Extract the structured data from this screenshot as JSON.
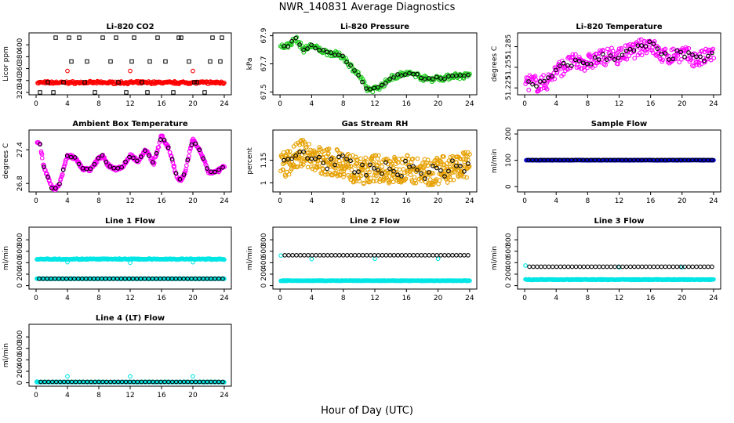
{
  "page": {
    "title": "NWR_140831  Average Diagnostics",
    "xlabel": "Hour of Day (UTC)"
  },
  "colors": {
    "hourly": "#000000",
    "red": "#ff0000",
    "green": "#22cc22",
    "magenta": "#ff00ff",
    "orange": "#e6a000",
    "blue": "#0000cc",
    "cyan": "#00e5e5"
  },
  "chart_data": [
    {
      "id": "li820-co2",
      "type": "scatter",
      "title": "Li-820 CO2",
      "ylabel": "Licor ppm",
      "xlim": [
        0,
        24
      ],
      "ylim": [
        316,
        420
      ],
      "xticks": [
        0,
        4,
        8,
        12,
        16,
        20,
        24
      ],
      "yticks": [
        320,
        340,
        360,
        380,
        400
      ],
      "series": [
        {
          "kind": "band",
          "color": "red",
          "x": [
            0.2,
            24
          ],
          "y": [
            335,
            338
          ],
          "jitter": 2
        },
        {
          "kind": "points",
          "color": "red",
          "x": [
            4.0,
            12.0,
            20.0
          ],
          "y": [
            356,
            356,
            356
          ]
        },
        {
          "kind": "points",
          "color": "hourly",
          "marker": "square",
          "x": [
            0.5,
            1.5,
            2.5,
            3.5,
            4.5,
            5.5,
            6.5,
            7.5,
            8.5,
            9.5,
            10.5,
            11.5,
            12.5,
            13.5,
            14.5,
            15.5,
            16.5,
            17.5,
            18.5,
            19.5,
            20.5,
            21.5,
            22.5,
            23.5
          ],
          "y": [
            320,
            337,
            412,
            337,
            372,
            412,
            372,
            320,
            412,
            372,
            337,
            320,
            412,
            337,
            372,
            412,
            372,
            320,
            412,
            372,
            337,
            320,
            412,
            372
          ]
        },
        {
          "kind": "points",
          "color": "hourly",
          "marker": "square",
          "x": [
            2.2,
            4.2,
            6.2,
            10.2,
            12.2,
            14.2,
            18.2,
            20.2,
            22.2,
            23.7
          ],
          "y": [
            320,
            412,
            337,
            412,
            372,
            320,
            412,
            337,
            372,
            412
          ]
        }
      ]
    },
    {
      "id": "li820-pressure",
      "type": "scatter",
      "title": "Li-820 Pressure",
      "ylabel": "kPa",
      "xlim": [
        0,
        24
      ],
      "ylim": [
        67.48,
        67.92
      ],
      "xticks": [
        0,
        4,
        8,
        12,
        16,
        20,
        24
      ],
      "yticks": [
        67.5,
        67.7,
        67.9
      ],
      "series": [
        {
          "kind": "curve",
          "color": "green",
          "spread": 0.02,
          "density": 10,
          "x": [
            0,
            1,
            2,
            3,
            4,
            5,
            6,
            7,
            8,
            9,
            10,
            11,
            12,
            13,
            14,
            15,
            16,
            17,
            18,
            19,
            20,
            21,
            22,
            23,
            24
          ],
          "y": [
            67.82,
            67.83,
            67.88,
            67.8,
            67.83,
            67.8,
            67.78,
            67.77,
            67.75,
            67.68,
            67.62,
            67.52,
            67.52,
            67.55,
            67.6,
            67.62,
            67.63,
            67.63,
            67.6,
            67.59,
            67.6,
            67.6,
            67.62,
            67.61,
            67.62
          ]
        },
        {
          "kind": "hourly",
          "color": "hourly",
          "spread": 0.008,
          "src": 0
        }
      ]
    },
    {
      "id": "li820-temperature",
      "type": "scatter",
      "title": "Li-820 Temperature",
      "ylabel": "degrees C",
      "xlim": [
        0,
        24
      ],
      "ylim": [
        51.215,
        51.305
      ],
      "xticks": [
        0,
        4,
        8,
        12,
        16,
        20,
        24
      ],
      "yticks": [
        51.225,
        51.255,
        51.285
      ],
      "series": [
        {
          "kind": "curve",
          "color": "magenta",
          "spread": 0.012,
          "density": 12,
          "x": [
            0,
            2,
            3,
            4,
            6,
            8,
            10,
            12,
            14,
            16,
            17,
            18,
            20,
            22,
            24
          ],
          "y": [
            51.235,
            51.23,
            51.235,
            51.25,
            51.262,
            51.262,
            51.27,
            51.272,
            51.28,
            51.29,
            51.275,
            51.27,
            51.275,
            51.265,
            51.275
          ]
        },
        {
          "kind": "hourly",
          "color": "hourly",
          "spread": 0.006,
          "src": 0
        }
      ]
    },
    {
      "id": "ambient-box-temperature",
      "type": "scatter",
      "title": "Ambient Box Temperature",
      "ylabel": "degrees C",
      "xlim": [
        0,
        24
      ],
      "ylim": [
        26.65,
        27.75
      ],
      "xticks": [
        0,
        4,
        8,
        12,
        16,
        20,
        24
      ],
      "yticks": [
        26.8,
        27.4
      ],
      "series": [
        {
          "kind": "curve",
          "color": "magenta",
          "spread": 0.03,
          "density": 14,
          "x": [
            0,
            0.5,
            1,
            2,
            2.5,
            3,
            4,
            5,
            6,
            7,
            8,
            8.5,
            9,
            10,
            11,
            12,
            13,
            14,
            15,
            16,
            17,
            18,
            18.5,
            19,
            20,
            21,
            22,
            23,
            24
          ],
          "y": [
            27.55,
            27.5,
            27.1,
            26.72,
            26.7,
            26.8,
            27.3,
            27.25,
            27.05,
            27.05,
            27.25,
            27.3,
            27.15,
            27.05,
            27.1,
            27.3,
            27.2,
            27.4,
            27.15,
            27.65,
            27.4,
            26.9,
            26.85,
            27.0,
            27.6,
            27.35,
            27.0,
            27.0,
            27.1
          ]
        },
        {
          "kind": "hourly",
          "color": "hourly",
          "spread": 0.015,
          "src": 0
        }
      ]
    },
    {
      "id": "gas-stream-rh",
      "type": "scatter",
      "title": "Gas Stream RH",
      "ylabel": "percent",
      "xlim": [
        0,
        24
      ],
      "ylim": [
        0.94,
        1.35
      ],
      "xticks": [
        0,
        4,
        8,
        12,
        16,
        20,
        24
      ],
      "yticks": [
        1.0,
        1.15
      ],
      "series": [
        {
          "kind": "curve",
          "color": "orange",
          "spread": 0.09,
          "density": 22,
          "x": [
            0,
            2,
            3,
            4,
            6,
            8,
            10,
            12,
            14,
            16,
            18,
            20,
            22,
            24
          ],
          "y": [
            1.1,
            1.18,
            1.2,
            1.17,
            1.14,
            1.13,
            1.07,
            1.1,
            1.08,
            1.1,
            1.07,
            1.08,
            1.1,
            1.12
          ]
        },
        {
          "kind": "hourly",
          "color": "hourly",
          "spread": 0.05,
          "src": 0
        }
      ]
    },
    {
      "id": "sample-flow",
      "type": "scatter",
      "title": "Sample Flow",
      "ylabel": "ml/min",
      "xlim": [
        0,
        24
      ],
      "ylim": [
        -20,
        215
      ],
      "xticks": [
        0,
        4,
        8,
        12,
        16,
        20,
        24
      ],
      "yticks": [
        0,
        100,
        200
      ],
      "series": [
        {
          "kind": "band",
          "color": "blue",
          "x": [
            0.2,
            24
          ],
          "y": [
            100,
            101
          ],
          "jitter": 1
        },
        {
          "kind": "hourly",
          "color": "hourly",
          "flat": 101,
          "x0": 0.5,
          "x1": 23.8,
          "n": 48
        }
      ]
    },
    {
      "id": "line-1-flow",
      "type": "scatter",
      "title": "Line 1 Flow",
      "ylabel": "ml/min",
      "xlim": [
        0,
        24
      ],
      "ylim": [
        -60,
        1020
      ],
      "xticks": [
        0,
        4,
        8,
        12,
        16,
        20,
        24
      ],
      "yticks": [
        0,
        200,
        400,
        600,
        800
      ],
      "series": [
        {
          "kind": "band",
          "color": "cyan",
          "x": [
            0.1,
            24
          ],
          "y": [
            455,
            470
          ],
          "jitter": 8
        },
        {
          "kind": "band",
          "color": "cyan",
          "x": [
            0.1,
            24
          ],
          "y": [
            118,
            122
          ],
          "jitter": 2
        },
        {
          "kind": "points",
          "color": "cyan",
          "x": [
            4.0,
            12.0,
            20.0
          ],
          "y": [
            410,
            400,
            410
          ]
        },
        {
          "kind": "hourly",
          "color": "hourly",
          "flat": 120,
          "x0": 0.4,
          "x1": 23.8,
          "n": 48
        }
      ]
    },
    {
      "id": "line-2-flow",
      "type": "scatter",
      "title": "Line 2 Flow",
      "ylabel": "ml/min",
      "xlim": [
        0,
        24
      ],
      "ylim": [
        -60,
        1020
      ],
      "xticks": [
        0,
        4,
        8,
        12,
        16,
        20,
        24
      ],
      "yticks": [
        0,
        200,
        400,
        600,
        800
      ],
      "series": [
        {
          "kind": "band",
          "color": "cyan",
          "x": [
            0.1,
            24
          ],
          "y": [
            82,
            90
          ],
          "jitter": 3
        },
        {
          "kind": "points",
          "color": "cyan",
          "x": [
            0.1,
            4.0,
            12.0,
            20.0
          ],
          "y": [
            525,
            465,
            470,
            470
          ]
        },
        {
          "kind": "hourly",
          "color": "hourly",
          "flat": 530,
          "x0": 0.6,
          "x1": 23.8,
          "n": 48
        }
      ]
    },
    {
      "id": "line-3-flow",
      "type": "scatter",
      "title": "Line 3 Flow",
      "ylabel": "ml/min",
      "xlim": [
        0,
        24
      ],
      "ylim": [
        -60,
        1020
      ],
      "xticks": [
        0,
        4,
        8,
        12,
        16,
        20,
        24
      ],
      "yticks": [
        0,
        200,
        400,
        600,
        800
      ],
      "series": [
        {
          "kind": "band",
          "color": "cyan",
          "x": [
            0.1,
            24
          ],
          "y": [
            100,
            110
          ],
          "jitter": 4
        },
        {
          "kind": "points",
          "color": "cyan",
          "x": [
            0.1,
            12.0,
            20.0
          ],
          "y": [
            350,
            320,
            320
          ]
        },
        {
          "kind": "hourly",
          "color": "hourly",
          "flat": 330,
          "x0": 0.6,
          "x1": 23.8,
          "n": 48
        }
      ]
    },
    {
      "id": "line-4-lt-flow",
      "type": "scatter",
      "title": "Line 4 (LT) Flow",
      "ylabel": "ml/min",
      "xlim": [
        0,
        24
      ],
      "ylim": [
        -60,
        1020
      ],
      "xticks": [
        0,
        4,
        8,
        12,
        16,
        20,
        24
      ],
      "yticks": [
        0,
        200,
        400,
        600,
        800
      ],
      "series": [
        {
          "kind": "band",
          "color": "cyan",
          "x": [
            0.1,
            24
          ],
          "y": [
            10,
            15
          ],
          "jitter": 2
        },
        {
          "kind": "points",
          "color": "cyan",
          "x": [
            0.1,
            4.0,
            12.0,
            20.0
          ],
          "y": [
            20,
            110,
            110,
            110
          ]
        },
        {
          "kind": "hourly",
          "color": "hourly",
          "flat": 15,
          "x0": 0.6,
          "x1": 23.8,
          "n": 48
        }
      ]
    }
  ]
}
